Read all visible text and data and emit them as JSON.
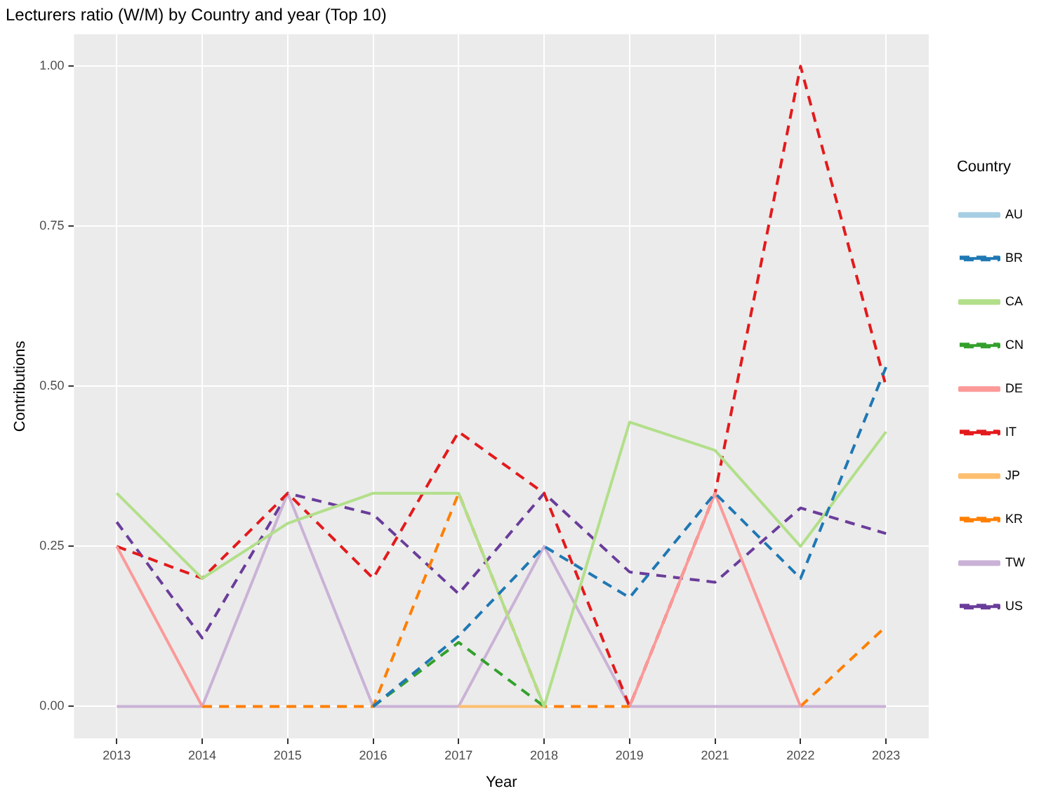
{
  "chart_data": {
    "type": "line",
    "title": "Lecturers ratio (W/M) by Country and year (Top 10)",
    "xlabel": "Year",
    "ylabel": "Contributions",
    "legend_title": "Country",
    "categories": [
      "2013",
      "2014",
      "2015",
      "2016",
      "2017",
      "2018",
      "2019",
      "2021",
      "2022",
      "2023"
    ],
    "ylim": [
      -0.05,
      1.05
    ],
    "yticks": [
      {
        "value": 0,
        "label": "0.00"
      },
      {
        "value": 0.25,
        "label": "0.25"
      },
      {
        "value": 0.5,
        "label": "0.50"
      },
      {
        "value": 0.75,
        "label": "0.75"
      },
      {
        "value": 1,
        "label": "1.00"
      }
    ],
    "grid": true,
    "legend": "right",
    "marker": "none",
    "series": [
      {
        "name": "AU",
        "color": "#a6cee3",
        "line_style": "solid",
        "values": [
          null,
          null,
          null,
          null,
          null,
          null,
          null,
          null,
          null,
          null
        ]
      },
      {
        "name": "BR",
        "color": "#1f78b4",
        "line_style": "dashed",
        "values": [
          null,
          null,
          null,
          0,
          0.11,
          0.25,
          0.17,
          0.333,
          0.2,
          0.53
        ]
      },
      {
        "name": "CA",
        "color": "#b2df8a",
        "line_style": "solid",
        "values": [
          0.333,
          0.2,
          0.286,
          0.333,
          0.333,
          0,
          0.444,
          0.4,
          0.25,
          0.429
        ]
      },
      {
        "name": "CN",
        "color": "#33a02c",
        "line_style": "dashed",
        "values": [
          null,
          null,
          null,
          0,
          0.1,
          0,
          null,
          null,
          null,
          null
        ]
      },
      {
        "name": "DE",
        "color": "#fb9a99",
        "line_style": "solid",
        "values": [
          0.25,
          0,
          null,
          null,
          null,
          null,
          0,
          0.333,
          0,
          null
        ]
      },
      {
        "name": "IT",
        "color": "#e31a1c",
        "line_style": "dashed",
        "values": [
          0.25,
          0.2,
          0.333,
          0.2,
          0.429,
          0.333,
          0,
          0.333,
          1,
          0.5
        ]
      },
      {
        "name": "JP",
        "color": "#fdbf6f",
        "line_style": "solid",
        "values": [
          null,
          null,
          null,
          null,
          0,
          0,
          null,
          null,
          null,
          null
        ]
      },
      {
        "name": "KR",
        "color": "#ff7f00",
        "line_style": "dashed",
        "values": [
          null,
          0,
          0,
          0,
          0.333,
          0,
          0,
          null,
          0,
          0.125
        ]
      },
      {
        "name": "TW",
        "color": "#cab2d6",
        "line_style": "solid",
        "values": [
          0,
          0,
          0.333,
          0,
          0,
          0.25,
          0,
          0,
          0,
          0
        ]
      },
      {
        "name": "US",
        "color": "#6a3d9a",
        "line_style": "dashed",
        "values": [
          0.288,
          0.107,
          0.333,
          0.3,
          0.176,
          0.333,
          0.21,
          0.194,
          0.31,
          0.27
        ]
      }
    ]
  }
}
